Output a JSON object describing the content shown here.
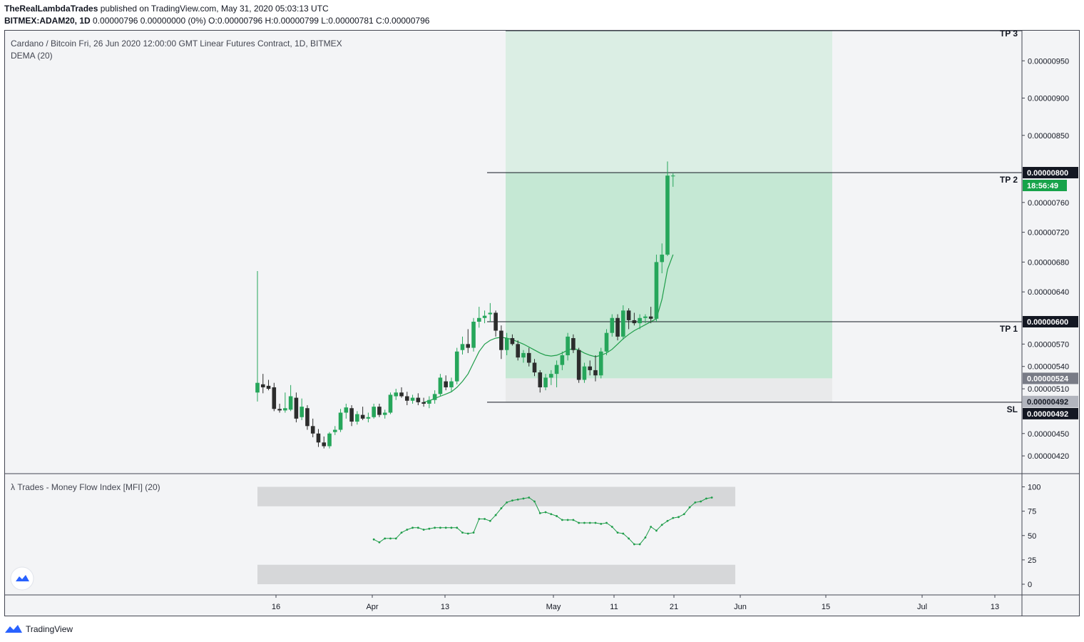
{
  "header": {
    "publisher": "TheRealLambdaTrades",
    "published_text": " published on TradingView.com, May 31, 2020 05:03:13 UTC",
    "symbol": "BITMEX:ADAM20, 1D",
    "ohlc_text": " 0.00000796 0.00000000 (0%) O:0.00000796 H:0.00000799 L:0.00000781 C:0.00000796"
  },
  "footer": {
    "brand": "TradingView"
  },
  "colors": {
    "up": "#26a65b",
    "down": "#2c2c2c",
    "dema": "#1f9d4a",
    "tp_zone_dark": "#c5e8d4",
    "tp_zone_light": "#dbeee4",
    "sl_zone": "#e9eaeb",
    "mfi_band": "#d6d7d9",
    "price_tag_green": "#17a34a"
  },
  "chart_data": [
    {
      "type": "candlestick",
      "title": "Cardano / Bitcoin Fri, 26 Jun 2020 12:00:00 GMT Linear Futures Contract, 1D, BITMEX",
      "indicator_label": "DEMA (20)",
      "y_axis_ticks": [
        "0.00000950",
        "0.00000900",
        "0.00000850",
        "0.00000760",
        "0.00000720",
        "0.00000680",
        "0.00000640",
        "0.00000570",
        "0.00000540",
        "0.00000510",
        "0.00000450",
        "0.00000420"
      ],
      "x_axis_ticks": [
        "16",
        "Apr",
        "13",
        "May",
        "11",
        "21",
        "Jun",
        "15",
        "Jul",
        "13"
      ],
      "price_tags": {
        "tp2_price": "0.00000800",
        "countdown": "18:56:49",
        "tp1_price": "0.00000600",
        "entry_price": "0.00000524",
        "sl_price_1": "0.00000492",
        "sl_price_2": "0.00000492"
      },
      "levels": {
        "tp3_label": "TP 3",
        "tp2_label": "TP 2",
        "tp1_label": "TP 1",
        "sl_label": "SL",
        "tp2": 8e-06,
        "tp1": 6e-06,
        "entry": 5.24e-06,
        "sl": 4.92e-06
      },
      "candles": [
        {
          "o": 5.05e-06,
          "h": 6.68e-06,
          "l": 4.93e-06,
          "c": 5.18e-06
        },
        {
          "o": 5.16e-06,
          "h": 5.3e-06,
          "l": 5.04e-06,
          "c": 5.12e-06
        },
        {
          "o": 5.14e-06,
          "h": 5.22e-06,
          "l": 5.08e-06,
          "c": 5.1e-06
        },
        {
          "o": 5.12e-06,
          "h": 5.18e-06,
          "l": 4.8e-06,
          "c": 4.83e-06
        },
        {
          "o": 4.83e-06,
          "h": 4.9e-06,
          "l": 4.78e-06,
          "c": 4.81e-06
        },
        {
          "o": 4.81e-06,
          "h": 5.05e-06,
          "l": 4.78e-06,
          "c": 4.84e-06
        },
        {
          "o": 4.82e-06,
          "h": 5.15e-06,
          "l": 4.8e-06,
          "c": 5e-06
        },
        {
          "o": 4.98e-06,
          "h": 5.05e-06,
          "l": 4.65e-06,
          "c": 4.7e-06
        },
        {
          "o": 4.72e-06,
          "h": 4.97e-06,
          "l": 4.68e-06,
          "c": 4.86e-06
        },
        {
          "o": 4.84e-06,
          "h": 4.88e-06,
          "l": 4.55e-06,
          "c": 4.6e-06
        },
        {
          "o": 4.6e-06,
          "h": 4.7e-06,
          "l": 4.45e-06,
          "c": 4.5e-06
        },
        {
          "o": 4.5e-06,
          "h": 4.56e-06,
          "l": 4.32e-06,
          "c": 4.38e-06
        },
        {
          "o": 4.38e-06,
          "h": 4.46e-06,
          "l": 4.3e-06,
          "c": 4.33e-06
        },
        {
          "o": 4.33e-06,
          "h": 4.52e-06,
          "l": 4.3e-06,
          "c": 4.5e-06
        },
        {
          "o": 4.52e-06,
          "h": 4.6e-06,
          "l": 4.48e-06,
          "c": 4.55e-06
        },
        {
          "o": 4.55e-06,
          "h": 4.83e-06,
          "l": 4.52e-06,
          "c": 4.78e-06
        },
        {
          "o": 4.78e-06,
          "h": 4.9e-06,
          "l": 4.7e-06,
          "c": 4.85e-06
        },
        {
          "o": 4.84e-06,
          "h": 4.88e-06,
          "l": 4.6e-06,
          "c": 4.66e-06
        },
        {
          "o": 4.66e-06,
          "h": 4.8e-06,
          "l": 4.62e-06,
          "c": 4.76e-06
        },
        {
          "o": 4.75e-06,
          "h": 4.86e-06,
          "l": 4.68e-06,
          "c": 4.7e-06
        },
        {
          "o": 4.7e-06,
          "h": 4.78e-06,
          "l": 4.65e-06,
          "c": 4.72e-06
        },
        {
          "o": 4.72e-06,
          "h": 4.9e-06,
          "l": 4.7e-06,
          "c": 4.86e-06
        },
        {
          "o": 4.86e-06,
          "h": 4.9e-06,
          "l": 4.72e-06,
          "c": 4.75e-06
        },
        {
          "o": 4.75e-06,
          "h": 4.82e-06,
          "l": 4.7e-06,
          "c": 4.78e-06
        },
        {
          "o": 4.78e-06,
          "h": 5.05e-06,
          "l": 4.76e-06,
          "c": 5.02e-06
        },
        {
          "o": 5e-06,
          "h": 5.1e-06,
          "l": 4.95e-06,
          "c": 5.05e-06
        },
        {
          "o": 5.05e-06,
          "h": 5.12e-06,
          "l": 4.98e-06,
          "c": 5e-06
        },
        {
          "o": 5e-06,
          "h": 5.06e-06,
          "l": 4.88e-06,
          "c": 4.94e-06
        },
        {
          "o": 4.94e-06,
          "h": 5.02e-06,
          "l": 4.9e-06,
          "c": 4.98e-06
        },
        {
          "o": 4.98e-06,
          "h": 5.04e-06,
          "l": 4.88e-06,
          "c": 4.92e-06
        },
        {
          "o": 4.92e-06,
          "h": 4.98e-06,
          "l": 4.86e-06,
          "c": 4.9e-06
        },
        {
          "o": 4.9e-06,
          "h": 5e-06,
          "l": 4.84e-06,
          "c": 4.95e-06
        },
        {
          "o": 4.95e-06,
          "h": 5.08e-06,
          "l": 4.9e-06,
          "c": 5.03e-06
        },
        {
          "o": 5.03e-06,
          "h": 5.3e-06,
          "l": 5e-06,
          "c": 5.25e-06
        },
        {
          "o": 5.2e-06,
          "h": 5.28e-06,
          "l": 5.08e-06,
          "c": 5.12e-06
        },
        {
          "o": 5.12e-06,
          "h": 5.25e-06,
          "l": 5.06e-06,
          "c": 5.2e-06
        },
        {
          "o": 5.2e-06,
          "h": 5.65e-06,
          "l": 5.16e-06,
          "c": 5.6e-06
        },
        {
          "o": 5.62e-06,
          "h": 5.8e-06,
          "l": 5.56e-06,
          "c": 5.7e-06
        },
        {
          "o": 5.7e-06,
          "h": 5.9e-06,
          "l": 5.58e-06,
          "c": 5.65e-06
        },
        {
          "o": 5.65e-06,
          "h": 6.05e-06,
          "l": 5.6e-06,
          "c": 6e-06
        },
        {
          "o": 6e-06,
          "h": 6.2e-06,
          "l": 5.92e-06,
          "c": 6.05e-06
        },
        {
          "o": 6.05e-06,
          "h": 6.15e-06,
          "l": 5.98e-06,
          "c": 6.08e-06
        },
        {
          "o": 6.1e-06,
          "h": 6.25e-06,
          "l": 6e-06,
          "c": 6.12e-06
        },
        {
          "o": 6.12e-06,
          "h": 6.15e-06,
          "l": 5.8e-06,
          "c": 5.88e-06
        },
        {
          "o": 5.88e-06,
          "h": 5.95e-06,
          "l": 5.5e-06,
          "c": 5.62e-06
        },
        {
          "o": 5.62e-06,
          "h": 5.85e-06,
          "l": 5.55e-06,
          "c": 5.78e-06
        },
        {
          "o": 5.78e-06,
          "h": 5.83e-06,
          "l": 5.68e-06,
          "c": 5.7e-06
        },
        {
          "o": 5.7e-06,
          "h": 5.75e-06,
          "l": 5.48e-06,
          "c": 5.52e-06
        },
        {
          "o": 5.52e-06,
          "h": 5.62e-06,
          "l": 5.45e-06,
          "c": 5.58e-06
        },
        {
          "o": 5.58e-06,
          "h": 5.65e-06,
          "l": 5.4e-06,
          "c": 5.45e-06
        },
        {
          "o": 5.45e-06,
          "h": 5.5e-06,
          "l": 5.27e-06,
          "c": 5.32e-06
        },
        {
          "o": 5.32e-06,
          "h": 5.35e-06,
          "l": 5.05e-06,
          "c": 5.12e-06
        },
        {
          "o": 5.12e-06,
          "h": 5.3e-06,
          "l": 5.08e-06,
          "c": 5.25e-06
        },
        {
          "o": 5.25e-06,
          "h": 5.35e-06,
          "l": 5.15e-06,
          "c": 5.3e-06
        },
        {
          "o": 5.3e-06,
          "h": 5.48e-06,
          "l": 5.12e-06,
          "c": 5.42e-06
        },
        {
          "o": 5.42e-06,
          "h": 5.6e-06,
          "l": 5.35e-06,
          "c": 5.55e-06
        },
        {
          "o": 5.55e-06,
          "h": 5.85e-06,
          "l": 5.48e-06,
          "c": 5.8e-06
        },
        {
          "o": 5.78e-06,
          "h": 5.83e-06,
          "l": 5.58e-06,
          "c": 5.62e-06
        },
        {
          "o": 5.62e-06,
          "h": 5.65e-06,
          "l": 5.18e-06,
          "c": 5.22e-06
        },
        {
          "o": 5.22e-06,
          "h": 5.45e-06,
          "l": 5.18e-06,
          "c": 5.4e-06
        },
        {
          "o": 5.4e-06,
          "h": 5.48e-06,
          "l": 5.28e-06,
          "c": 5.35e-06
        },
        {
          "o": 5.35e-06,
          "h": 5.55e-06,
          "l": 5.2e-06,
          "c": 5.28e-06
        },
        {
          "o": 5.28e-06,
          "h": 5.65e-06,
          "l": 5.24e-06,
          "c": 5.6e-06
        },
        {
          "o": 5.6e-06,
          "h": 5.9e-06,
          "l": 5.55e-06,
          "c": 5.85e-06
        },
        {
          "o": 5.85e-06,
          "h": 6.1e-06,
          "l": 5.8e-06,
          "c": 6.05e-06
        },
        {
          "o": 6.05e-06,
          "h": 6.1e-06,
          "l": 5.75e-06,
          "c": 5.8e-06
        },
        {
          "o": 5.8e-06,
          "h": 6.22e-06,
          "l": 5.76e-06,
          "c": 6.15e-06
        },
        {
          "o": 6.15e-06,
          "h": 6.18e-06,
          "l": 5.9e-06,
          "c": 6.02e-06
        },
        {
          "o": 6.02e-06,
          "h": 6.12e-06,
          "l": 5.95e-06,
          "c": 5.98e-06
        },
        {
          "o": 5.98e-06,
          "h": 6.1e-06,
          "l": 5.9e-06,
          "c": 6.05e-06
        },
        {
          "o": 6.05e-06,
          "h": 6.1e-06,
          "l": 5.98e-06,
          "c": 6.07e-06
        },
        {
          "o": 6.07e-06,
          "h": 6.2e-06,
          "l": 5.98e-06,
          "c": 6.04e-06
        },
        {
          "o": 6.04e-06,
          "h": 6.9e-06,
          "l": 6e-06,
          "c": 6.8e-06
        },
        {
          "o": 6.8e-06,
          "h": 7.05e-06,
          "l": 6.65e-06,
          "c": 6.9e-06
        },
        {
          "o": 6.9e-06,
          "h": 8.15e-06,
          "l": 6.88e-06,
          "c": 7.96e-06
        },
        {
          "o": 7.96e-06,
          "h": 7.99e-06,
          "l": 7.81e-06,
          "c": 7.96e-06
        }
      ],
      "dema": [
        4.92e-06,
        4.94e-06,
        4.97e-06,
        5e-06,
        5.03e-06,
        5.06e-06,
        5.12e-06,
        5.2e-06,
        5.3e-06,
        5.45e-06,
        5.6e-06,
        5.7e-06,
        5.75e-06,
        5.78e-06,
        5.79e-06,
        5.78e-06,
        5.76e-06,
        5.73e-06,
        5.7e-06,
        5.66e-06,
        5.62e-06,
        5.58e-06,
        5.55e-06,
        5.54e-06,
        5.55e-06,
        5.58e-06,
        5.62e-06,
        5.64e-06,
        5.62e-06,
        5.58e-06,
        5.55e-06,
        5.53e-06,
        5.55e-06,
        5.58e-06,
        5.63e-06,
        5.7e-06,
        5.77e-06,
        5.83e-06,
        5.88e-06,
        5.92e-06,
        5.96e-06,
        6e-06,
        6.04e-06,
        6.3e-06,
        6.7e-06,
        6.9e-06
      ],
      "dema_start_index": 30
    },
    {
      "type": "line",
      "title": "λ Trades - Money Flow Index [MFI] (20)",
      "ylim": [
        0,
        100
      ],
      "y_axis_ticks": [
        "100",
        "75",
        "50",
        "25",
        "0"
      ],
      "bands": {
        "upper": [
          80,
          100
        ],
        "lower": [
          0,
          20
        ]
      },
      "start_index": 21,
      "values": [
        46,
        43,
        47,
        47,
        47,
        53,
        56,
        58,
        58,
        56,
        57,
        58,
        58,
        58,
        58,
        58,
        53,
        52,
        53,
        67,
        67,
        65,
        71,
        78,
        84,
        86,
        87,
        88,
        89,
        85,
        73,
        74,
        72,
        70,
        66,
        66,
        66,
        63,
        63,
        63,
        63,
        62,
        63,
        59,
        53,
        52,
        47,
        41,
        41,
        48,
        59,
        55,
        61,
        65,
        68,
        69,
        72,
        79,
        84,
        85,
        88,
        89
      ]
    }
  ]
}
